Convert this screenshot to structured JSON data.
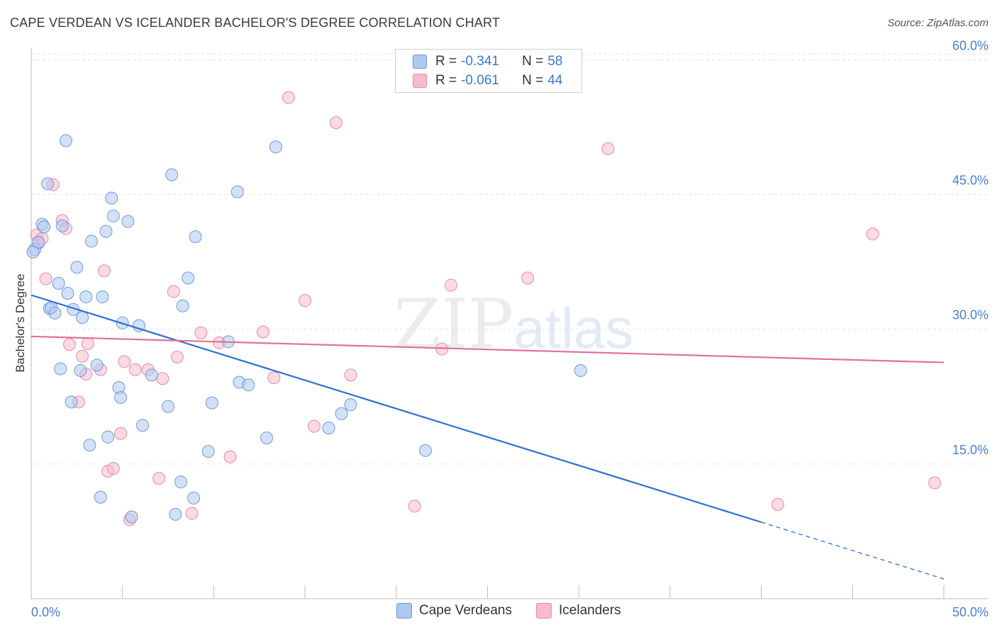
{
  "title": "CAPE VERDEAN VS ICELANDER BACHELOR'S DEGREE CORRELATION CHART",
  "source": "Source: ZipAtlas.com",
  "watermark": {
    "zip": "ZIP",
    "atlas": "atlas"
  },
  "legend": {
    "rows": [
      {
        "r_label": "R = ",
        "r_value": "-0.341",
        "n_label": "N = ",
        "n_value": "58"
      },
      {
        "r_label": "R = ",
        "r_value": "-0.061",
        "n_label": "N = ",
        "n_value": "44"
      }
    ]
  },
  "bottom_legend": [
    "Cape Verdeans",
    "Icelanders"
  ],
  "colors": {
    "blue_fill": "#aec8ee",
    "blue_stroke": "#6f9ad8",
    "blue_line": "#2f6fd0",
    "pink_fill": "#f5bccd",
    "pink_stroke": "#e58aa8",
    "pink_line": "#e0709a",
    "grid": "#e3e3e3",
    "tick_text": "#4a7fcc"
  },
  "chart_data": {
    "type": "scatter",
    "title": "CAPE VERDEAN VS ICELANDER BACHELOR'S DEGREE CORRELATION CHART",
    "xlabel": "",
    "ylabel": "Bachelor's Degree",
    "xlim": [
      0,
      50
    ],
    "ylim": [
      0,
      62
    ],
    "x_tick_labels": [
      "0.0%",
      "50.0%"
    ],
    "y_ticks": [
      15,
      30,
      45,
      60
    ],
    "y_tick_labels": [
      "15.0%",
      "30.0%",
      "45.0%",
      "60.0%"
    ],
    "series": [
      {
        "name": "Cape Verdeans",
        "r": -0.341,
        "n": 58,
        "trend": {
          "x0": 0,
          "y0": 33.8,
          "x1": 50,
          "y1": 2.2,
          "solid_until_x": 40
        },
        "points": [
          [
            0.2,
            38.9
          ],
          [
            0.4,
            39.7
          ],
          [
            0.6,
            41.7
          ],
          [
            0.7,
            41.4
          ],
          [
            0.9,
            46.2
          ],
          [
            1.0,
            32.3
          ],
          [
            1.1,
            32.4
          ],
          [
            1.3,
            31.8
          ],
          [
            1.5,
            35.1
          ],
          [
            1.6,
            25.6
          ],
          [
            1.7,
            41.5
          ],
          [
            1.9,
            51.0
          ],
          [
            2.0,
            34.0
          ],
          [
            2.2,
            21.9
          ],
          [
            2.3,
            32.2
          ],
          [
            2.5,
            36.9
          ],
          [
            2.7,
            25.4
          ],
          [
            2.8,
            31.3
          ],
          [
            3.0,
            33.6
          ],
          [
            3.2,
            17.1
          ],
          [
            3.3,
            39.8
          ],
          [
            3.6,
            26.0
          ],
          [
            3.8,
            11.3
          ],
          [
            3.9,
            33.6
          ],
          [
            4.1,
            40.9
          ],
          [
            4.2,
            18.0
          ],
          [
            4.4,
            44.6
          ],
          [
            4.5,
            42.6
          ],
          [
            4.8,
            23.5
          ],
          [
            4.9,
            22.4
          ],
          [
            5.0,
            30.7
          ],
          [
            5.3,
            42.0
          ],
          [
            5.5,
            9.1
          ],
          [
            5.9,
            30.4
          ],
          [
            6.1,
            19.3
          ],
          [
            6.6,
            24.9
          ],
          [
            7.5,
            21.4
          ],
          [
            7.7,
            47.2
          ],
          [
            7.9,
            9.4
          ],
          [
            8.2,
            13.0
          ],
          [
            8.3,
            32.6
          ],
          [
            8.6,
            35.7
          ],
          [
            8.9,
            11.2
          ],
          [
            9.0,
            40.3
          ],
          [
            9.7,
            16.4
          ],
          [
            9.9,
            21.8
          ],
          [
            10.8,
            28.6
          ],
          [
            11.3,
            45.3
          ],
          [
            11.4,
            24.1
          ],
          [
            11.9,
            23.8
          ],
          [
            12.9,
            17.9
          ],
          [
            13.4,
            50.3
          ],
          [
            16.3,
            19.0
          ],
          [
            17.0,
            20.6
          ],
          [
            17.5,
            21.6
          ],
          [
            21.6,
            16.5
          ],
          [
            30.1,
            25.4
          ],
          [
            0.1,
            38.6
          ]
        ]
      },
      {
        "name": "Icelanders",
        "r": -0.061,
        "n": 44,
        "trend": {
          "x0": 0,
          "y0": 29.2,
          "x1": 50,
          "y1": 26.3
        },
        "points": [
          [
            0.3,
            40.5
          ],
          [
            0.4,
            39.6
          ],
          [
            0.6,
            40.1
          ],
          [
            0.8,
            35.6
          ],
          [
            1.2,
            46.1
          ],
          [
            1.7,
            42.1
          ],
          [
            1.9,
            41.2
          ],
          [
            2.1,
            28.3
          ],
          [
            2.6,
            21.9
          ],
          [
            2.8,
            27.0
          ],
          [
            3.0,
            25.0
          ],
          [
            3.1,
            28.4
          ],
          [
            3.8,
            25.5
          ],
          [
            4.0,
            36.5
          ],
          [
            4.2,
            14.2
          ],
          [
            4.5,
            14.5
          ],
          [
            4.9,
            18.4
          ],
          [
            5.1,
            26.4
          ],
          [
            5.4,
            8.8
          ],
          [
            5.7,
            25.5
          ],
          [
            6.4,
            25.5
          ],
          [
            7.0,
            13.4
          ],
          [
            7.2,
            24.5
          ],
          [
            7.8,
            34.2
          ],
          [
            8.0,
            26.9
          ],
          [
            8.8,
            9.5
          ],
          [
            9.3,
            29.6
          ],
          [
            10.3,
            28.5
          ],
          [
            10.9,
            15.8
          ],
          [
            12.7,
            29.7
          ],
          [
            13.3,
            24.6
          ],
          [
            14.1,
            55.8
          ],
          [
            15.0,
            33.2
          ],
          [
            15.5,
            19.2
          ],
          [
            16.7,
            53.0
          ],
          [
            17.5,
            24.9
          ],
          [
            21.0,
            10.3
          ],
          [
            22.5,
            27.8
          ],
          [
            23.0,
            34.9
          ],
          [
            27.2,
            35.7
          ],
          [
            31.6,
            50.1
          ],
          [
            40.9,
            10.5
          ],
          [
            46.1,
            40.6
          ],
          [
            49.5,
            12.9
          ]
        ]
      }
    ]
  }
}
